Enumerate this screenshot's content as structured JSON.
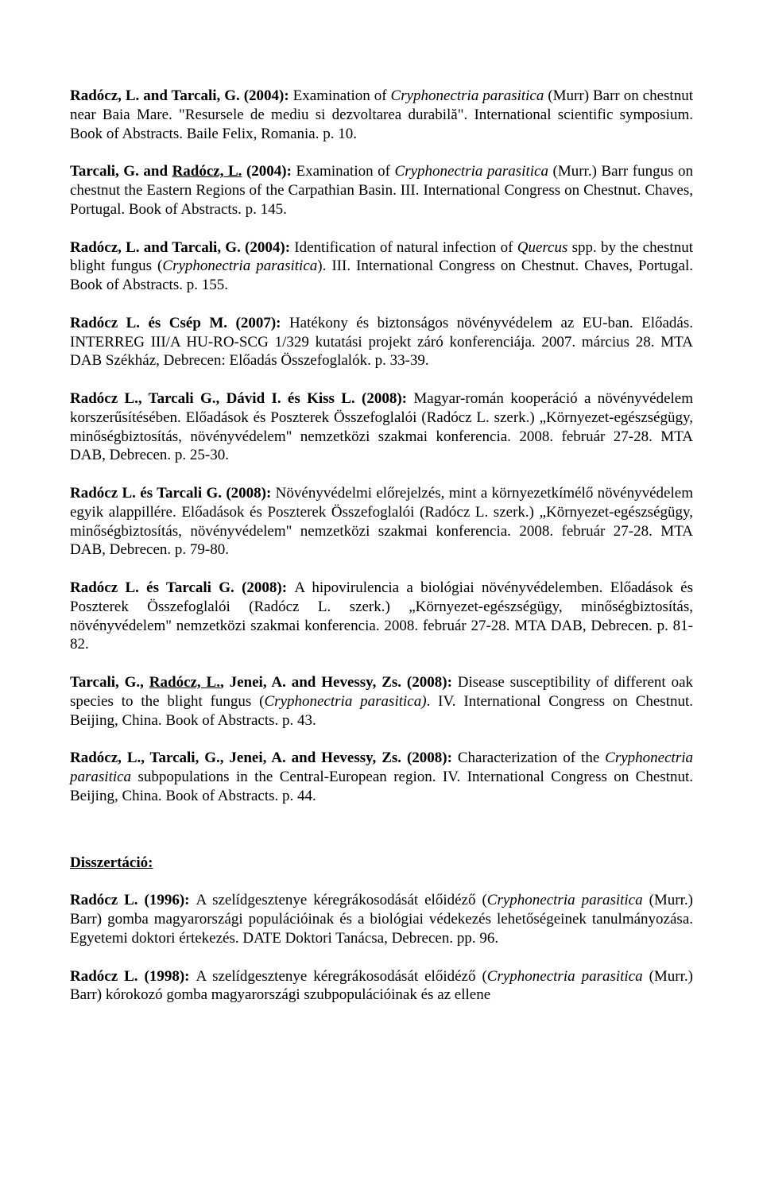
{
  "entries": [
    {
      "segments": [
        {
          "t": "Radócz, L. and Tarcali, G. (2004): ",
          "b": true
        },
        {
          "t": "Examination of "
        },
        {
          "t": "Cryphonectria parasitica",
          "i": true
        },
        {
          "t": " (Murr) Barr on chestnut near Baia Mare. \"Resursele de mediu si dezvoltarea durabilă\". International scientific symposium. Book of Abstracts. Baile Felix, Romania. p. 10."
        }
      ]
    },
    {
      "segments": [
        {
          "t": "Tarcali, G. and ",
          "b": true
        },
        {
          "t": "Radócz, L.",
          "b": true,
          "u": true
        },
        {
          "t": " (2004): ",
          "b": true
        },
        {
          "t": "Examination of "
        },
        {
          "t": "Cryphonectria parasitica",
          "i": true
        },
        {
          "t": " (Murr.) Barr fungus on chestnut the Eastern Regions of the Carpathian Basin. III. International Congress on Chestnut. Chaves, Portugal. Book of Abstracts. p. 145."
        }
      ]
    },
    {
      "segments": [
        {
          "t": "Radócz, L. and Tarcali, G. (2004): ",
          "b": true
        },
        {
          "t": "Identification of natural infection of "
        },
        {
          "t": "Quercus",
          "i": true
        },
        {
          "t": " spp. by the chestnut blight fungus ("
        },
        {
          "t": "Cryphonectria parasitica",
          "i": true
        },
        {
          "t": "). III. International Congress on Chestnut. Chaves, Portugal. Book of Abstracts. p. 155."
        }
      ]
    },
    {
      "segments": [
        {
          "t": "Radócz L. és Csép M. (2007): ",
          "b": true
        },
        {
          "t": "Hatékony és biztonságos növényvédelem az EU-ban. Előadás. INTERREG III/A HU-RO-SCG 1/329 kutatási projekt záró konferenciája. 2007. március 28. MTA DAB Székház, Debrecen: Előadás Összefoglalók. p. 33-39."
        }
      ]
    },
    {
      "segments": [
        {
          "t": "Radócz L., Tarcali G., Dávid I. és Kiss L. (2008): ",
          "b": true
        },
        {
          "t": "Magyar-román kooperáció a növényvédelem korszerűsítésében. Előadások és Poszterek Összefoglalói (Radócz L. szerk.) „Környezet-egészségügy, minőségbiztosítás, növényvédelem\" nemzetközi szakmai konferencia. 2008. február 27-28. MTA DAB, Debrecen. p. 25-30."
        }
      ]
    },
    {
      "segments": [
        {
          "t": "Radócz L. és Tarcali G. (2008): ",
          "b": true
        },
        {
          "t": "Növényvédelmi előrejelzés, mint a környezetkímélő növényvédelem egyik alappillére. Előadások és Poszterek Összefoglalói (Radócz L. szerk.) „Környezet-egészségügy, minőségbiztosítás, növényvédelem\" nemzetközi szakmai konferencia. 2008. február 27-28. MTA DAB, Debrecen. p. 79-80."
        }
      ]
    },
    {
      "segments": [
        {
          "t": "Radócz L. és Tarcali G. (2008): ",
          "b": true
        },
        {
          "t": "A hipovirulencia a biológiai növényvédelemben. Előadások és Poszterek Összefoglalói (Radócz L. szerk.) „Környezet-egészségügy, minőségbiztosítás, növényvédelem\" nemzetközi szakmai konferencia. 2008. február 27-28. MTA DAB, Debrecen. p. 81-82."
        }
      ]
    },
    {
      "segments": [
        {
          "t": "Tarcali, G., ",
          "b": true
        },
        {
          "t": "Radócz, L.",
          "b": true,
          "u": true
        },
        {
          "t": ", Jenei, A. and Hevessy, Zs. (2008): ",
          "b": true
        },
        {
          "t": "Disease susceptibility of different oak species to the blight fungus ("
        },
        {
          "t": "Cryphonectria parasitica)",
          "i": true
        },
        {
          "t": ". IV. International Congress on Chestnut. Beijing, China. Book of Abstracts. p. 43."
        }
      ]
    },
    {
      "segments": [
        {
          "t": "Radócz, L., Tarcali, G., Jenei, A. and Hevessy, Zs. (2008): ",
          "b": true
        },
        {
          "t": "Characterization of the "
        },
        {
          "t": "Cryphonectria parasitica",
          "i": true
        },
        {
          "t": " subpopulations in the Central-European region. IV. International Congress on Chestnut. Beijing, China. Book of Abstracts. p. 44."
        }
      ]
    }
  ],
  "section_title": "Disszertáció:",
  "dissertations": [
    {
      "segments": [
        {
          "t": "Radócz L. (1996): ",
          "b": true
        },
        {
          "t": "A szelídgesztenye kéregrákosodását előidéző ("
        },
        {
          "t": "Cryphonectria parasitica",
          "i": true
        },
        {
          "t": " (Murr.) Barr) gomba magyarországi populációinak és a biológiai védekezés lehetőségeinek tanulmányozása. Egyetemi doktori értekezés. DATE Doktori Tanácsa, Debrecen. pp. 96."
        }
      ]
    },
    {
      "segments": [
        {
          "t": "Radócz L. (1998): ",
          "b": true
        },
        {
          "t": "A szelídgesztenye kéregrákosodását előidéző ("
        },
        {
          "t": "Cryphonectria parasitica",
          "i": true
        },
        {
          "t": " (Murr.) Barr) kórokozó gomba magyarországi szubpopulációinak és az ellene"
        }
      ]
    }
  ]
}
